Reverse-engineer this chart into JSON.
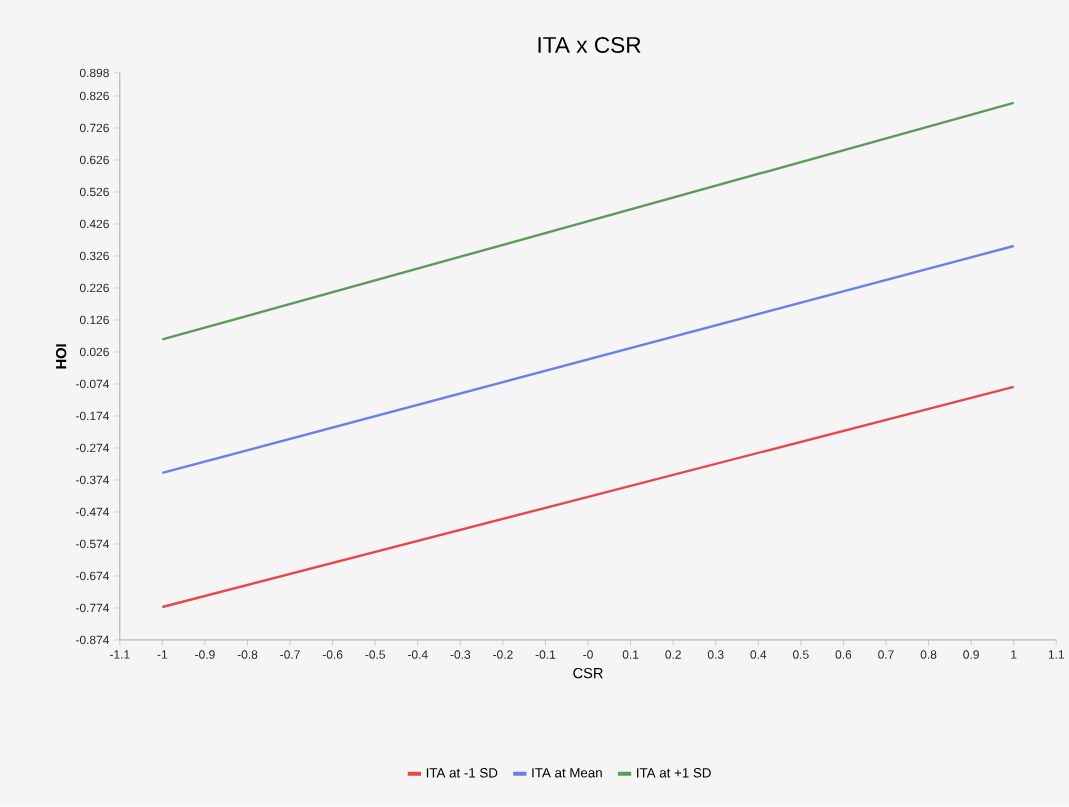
{
  "chart_data": {
    "type": "line",
    "title": "ITA x CSR",
    "xlabel": "CSR",
    "ylabel": "HOI",
    "x": [
      -1,
      1
    ],
    "series": [
      {
        "name": "ITA at -1 SD",
        "color": "#e8474a",
        "values": [
          -0.771,
          -0.083
        ]
      },
      {
        "name": "ITA at Mean",
        "color": "#6b7fe8",
        "values": [
          -0.352,
          0.357
        ]
      },
      {
        "name": "ITA at +1 SD",
        "color": "#5e9a5e",
        "values": [
          0.065,
          0.804
        ]
      }
    ],
    "xlim": [
      -1.1,
      1.1
    ],
    "ylim": [
      -0.874,
      0.898
    ],
    "xticks": [
      -1.1,
      -1,
      -0.9,
      -0.8,
      -0.7,
      -0.6,
      -0.5,
      -0.4,
      -0.3,
      -0.2,
      -0.1,
      {
        "value": 0,
        "label": "-0"
      },
      0.1,
      0.2,
      0.3,
      0.4,
      0.5,
      0.6,
      0.7,
      0.8,
      0.9,
      1,
      1.1
    ],
    "yticks": [
      -0.874,
      -0.774,
      -0.674,
      -0.574,
      -0.474,
      -0.374,
      -0.274,
      -0.174,
      -0.074,
      0.026,
      0.126,
      0.226,
      0.326,
      0.426,
      0.526,
      0.626,
      0.726,
      0.826,
      0.898
    ],
    "legend": "bottom"
  }
}
